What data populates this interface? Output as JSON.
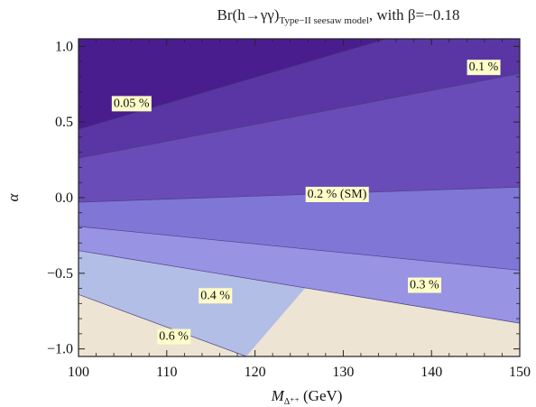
{
  "chart_data": {
    "type": "contour",
    "title": {
      "prefix": "Br(h→γγ)",
      "subscript": "Type−II seesaw model",
      "suffix": ", with β=−0.18"
    },
    "xlabel": {
      "main": "M",
      "subscript": "Δ⁺⁺",
      "unit": " (GeV)"
    },
    "ylabel": "α",
    "xlim": [
      100,
      150
    ],
    "ylim": [
      -1.05,
      1.05
    ],
    "xticks": [
      100,
      110,
      120,
      130,
      140,
      150
    ],
    "yticks": [
      -1.0,
      -0.5,
      0.0,
      0.5,
      1.0
    ],
    "xtick_labels": [
      "100",
      "110",
      "120",
      "130",
      "140",
      "150"
    ],
    "ytick_labels": [
      "−1.0",
      "−0.5",
      "0.0",
      "0.5",
      "1.0"
    ],
    "colors": {
      "background": "#ffffff",
      "contour_line": "#4a3f82",
      "label_bg": "#fefdc8",
      "frame": "#222222"
    },
    "regions": [
      {
        "level": "<0.05%",
        "color": "#4a1d8e",
        "boundary": [
          [
            100,
            0.45
          ],
          [
            135,
            1.05
          ]
        ]
      },
      {
        "level": "0.05-0.1%",
        "color": "#5a36a4",
        "boundary": [
          [
            100,
            0.26
          ],
          [
            150,
            0.82
          ]
        ]
      },
      {
        "level": "0.1-0.2%",
        "color": "#6a4cb8",
        "boundary": [
          [
            100,
            -0.03
          ],
          [
            150,
            0.07
          ]
        ]
      },
      {
        "level": "0.2-0.3%",
        "color": "#7f76d6",
        "boundary": [
          [
            100,
            -0.19
          ],
          [
            150,
            -0.48
          ]
        ]
      },
      {
        "level": "0.3-0.4%",
        "color": "#9993e4",
        "boundary": [
          [
            100,
            -0.35
          ],
          [
            150,
            -0.83
          ]
        ]
      },
      {
        "level": "0.4-0.6%",
        "color": "#b3bee6",
        "boundary": [
          [
            100,
            -0.64
          ],
          [
            119,
            -1.05
          ]
        ]
      },
      {
        "level": ">0.6%",
        "color": "#ede4d3",
        "boundary": null
      }
    ],
    "contour_labels": [
      {
        "text": "0.05 %",
        "x": 106.0,
        "y": 0.63
      },
      {
        "text": "0.1 %",
        "x": 145.9,
        "y": 0.87
      },
      {
        "text": "0.2 % (SM)",
        "x": 129.3,
        "y": 0.03
      },
      {
        "text": "0.3 %",
        "x": 139.2,
        "y": -0.57
      },
      {
        "text": "0.4 %",
        "x": 115.5,
        "y": -0.64
      },
      {
        "text": "0.6 %",
        "x": 110.8,
        "y": -0.91
      }
    ]
  }
}
